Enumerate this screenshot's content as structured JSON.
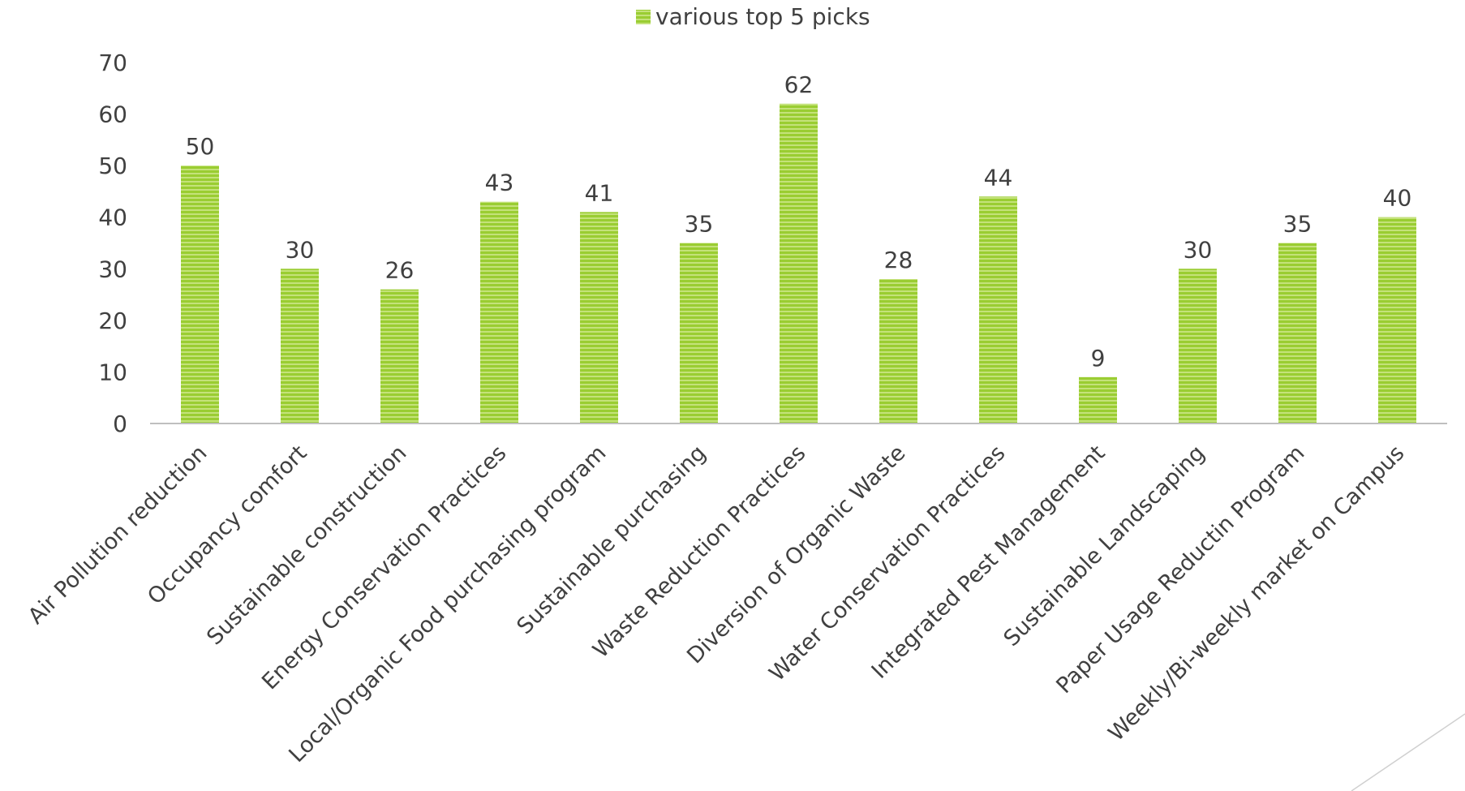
{
  "chart_data": {
    "type": "bar",
    "legend": {
      "position": "top",
      "entries": [
        "various top 5 picks"
      ]
    },
    "categories": [
      "Air Pollution reduction",
      "Occupancy comfort",
      "Sustainable construction",
      "Energy Conservation Practices",
      "Local/Organic Food purchasing program",
      "Sustainable purchasing",
      "Waste Reduction Practices",
      "Diversion of Organic Waste",
      "Water Conservation Practices",
      "Integrated Pest Management",
      "Sustainable Landscaping",
      "Paper Usage Reductin Program",
      "Weekly/Bi-weekly market on Campus"
    ],
    "series": [
      {
        "name": "various top 5 picks",
        "values": [
          50,
          30,
          26,
          43,
          41,
          35,
          62,
          28,
          44,
          9,
          30,
          35,
          40
        ]
      }
    ],
    "ylim": [
      0,
      70
    ],
    "yticks": [
      0,
      10,
      20,
      30,
      40,
      50,
      60,
      70
    ],
    "grid": false,
    "data_labels": true,
    "title": "",
    "xlabel": "",
    "ylabel": ""
  },
  "colors": {
    "bar_fill": "#9acd32",
    "bar_stripe": "#c4e27a",
    "axis": "#bfbfbf",
    "text": "#404040"
  }
}
